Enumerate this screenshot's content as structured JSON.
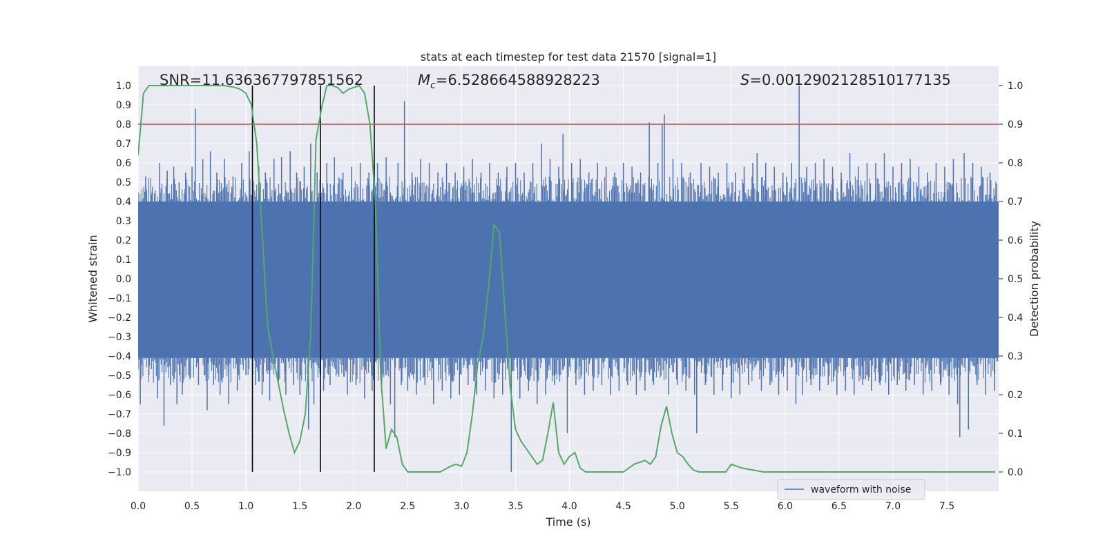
{
  "chart_data": {
    "type": "line",
    "title": "stats at each timestep for test data 21570 [signal=1]",
    "xlabel": "Time (s)",
    "ylabel": "Whitened strain",
    "y2label": "Detection probability",
    "xlim": [
      0,
      7.98
    ],
    "ylim": [
      -1.1,
      1.1
    ],
    "y2lim": [
      -0.05,
      1.05
    ],
    "x_ticks": [
      0.0,
      0.5,
      1.0,
      1.5,
      2.0,
      2.5,
      3.0,
      3.5,
      4.0,
      4.5,
      5.0,
      5.5,
      6.0,
      6.5,
      7.0,
      7.5
    ],
    "x_tick_labels": [
      "0.0",
      "0.5",
      "1.0",
      "1.5",
      "2.0",
      "2.5",
      "3.0",
      "3.5",
      "4.0",
      "4.5",
      "5.0",
      "5.5",
      "6.0",
      "6.5",
      "7.0",
      "7.5"
    ],
    "y_ticks": [
      1.0,
      0.9,
      0.8,
      0.7,
      0.6,
      0.5,
      0.4,
      0.3,
      0.2,
      0.1,
      0.0,
      -0.1,
      -0.2,
      -0.3,
      -0.4,
      -0.5,
      -0.6,
      -0.7,
      -0.8,
      -0.9,
      -1.0
    ],
    "y_tick_labels": [
      "1.0",
      "0.9",
      "0.8",
      "0.7",
      "0.6",
      "0.5",
      "0.4",
      "0.3",
      "0.2",
      "0.1",
      "0.0",
      "−0.1",
      "−0.2",
      "−0.3",
      "−0.4",
      "−0.5",
      "−0.6",
      "−0.7",
      "−0.8",
      "−0.9",
      "−1.0"
    ],
    "y2_ticks": [
      1.0,
      0.9,
      0.8,
      0.7,
      0.6,
      0.5,
      0.4,
      0.3,
      0.2,
      0.1,
      0.0
    ],
    "y2_tick_labels": [
      "1.0",
      "0.9",
      "0.8",
      "0.7",
      "0.6",
      "0.5",
      "0.4",
      "0.3",
      "0.2",
      "0.1",
      "0.0"
    ],
    "grid": true,
    "legend": {
      "entries": [
        "waveform with noise"
      ],
      "placement": "lower-right"
    },
    "annotations": {
      "snr": "SNR=11.636367797851562",
      "mc_symbol": "M",
      "mc_sub": "c",
      "mc_value": "=6.528664588928223",
      "s_symbol": "S",
      "s_value": "=0.0012902128510177135"
    },
    "threshold": {
      "y2": 0.9,
      "color": "#c44e52"
    },
    "vertical_lines": [
      1.06,
      1.69,
      2.19
    ],
    "waveform": {
      "name": "waveform with noise",
      "color": "#4c72b0",
      "band_pos": 0.4,
      "band_neg": -0.41,
      "spikes": [
        [
          0.02,
          -0.65
        ],
        [
          0.07,
          0.53
        ],
        [
          0.1,
          -0.5
        ],
        [
          0.13,
          0.45
        ],
        [
          0.18,
          -0.62
        ],
        [
          0.2,
          0.6
        ],
        [
          0.24,
          -0.76
        ],
        [
          0.27,
          0.56
        ],
        [
          0.3,
          -0.55
        ],
        [
          0.33,
          0.58
        ],
        [
          0.36,
          -0.65
        ],
        [
          0.38,
          0.5
        ],
        [
          0.41,
          -0.6
        ],
        [
          0.44,
          0.55
        ],
        [
          0.47,
          -0.5
        ],
        [
          0.5,
          0.58
        ],
        [
          0.53,
          0.88
        ],
        [
          0.56,
          -0.55
        ],
        [
          0.6,
          0.62
        ],
        [
          0.64,
          -0.68
        ],
        [
          0.67,
          0.66
        ],
        [
          0.7,
          -0.55
        ],
        [
          0.73,
          0.55
        ],
        [
          0.76,
          -0.6
        ],
        [
          0.8,
          0.62
        ],
        [
          0.84,
          -0.65
        ],
        [
          0.88,
          0.53
        ],
        [
          0.92,
          -0.58
        ],
        [
          0.96,
          0.6
        ],
        [
          1.0,
          -0.5
        ],
        [
          1.03,
          0.66
        ],
        [
          1.09,
          -0.55
        ],
        [
          1.12,
          0.58
        ],
        [
          1.15,
          -0.6
        ],
        [
          1.18,
          0.55
        ],
        [
          1.22,
          -0.63
        ],
        [
          1.26,
          0.62
        ],
        [
          1.3,
          -0.55
        ],
        [
          1.33,
          0.63
        ],
        [
          1.37,
          -0.6
        ],
        [
          1.41,
          0.66
        ],
        [
          1.44,
          -0.55
        ],
        [
          1.47,
          0.55
        ],
        [
          1.5,
          -0.6
        ],
        [
          1.54,
          0.58
        ],
        [
          1.58,
          -0.78
        ],
        [
          1.6,
          0.7
        ],
        [
          1.63,
          -0.65
        ],
        [
          1.66,
          0.55
        ],
        [
          1.72,
          -0.58
        ],
        [
          1.75,
          0.6
        ],
        [
          1.78,
          -0.55
        ],
        [
          1.82,
          0.63
        ],
        [
          1.86,
          -0.5
        ],
        [
          1.9,
          0.55
        ],
        [
          1.94,
          -0.6
        ],
        [
          1.98,
          0.58
        ],
        [
          2.02,
          -0.55
        ],
        [
          2.06,
          0.6
        ],
        [
          2.1,
          -0.62
        ],
        [
          2.14,
          0.55
        ],
        [
          2.17,
          -0.58
        ],
        [
          2.22,
          0.6
        ],
        [
          2.26,
          -0.55
        ],
        [
          2.3,
          0.63
        ],
        [
          2.34,
          -0.65
        ],
        [
          2.38,
          -0.82
        ],
        [
          2.41,
          0.6
        ],
        [
          2.44,
          -0.55
        ],
        [
          2.47,
          0.92
        ],
        [
          2.5,
          -0.58
        ],
        [
          2.54,
          0.55
        ],
        [
          2.58,
          -0.6
        ],
        [
          2.62,
          0.62
        ],
        [
          2.66,
          -0.55
        ],
        [
          2.7,
          0.6
        ],
        [
          2.74,
          -0.65
        ],
        [
          2.78,
          0.55
        ],
        [
          2.82,
          -0.58
        ],
        [
          2.86,
          0.6
        ],
        [
          2.9,
          -0.62
        ],
        [
          2.94,
          0.55
        ],
        [
          2.98,
          -0.6
        ],
        [
          3.02,
          0.58
        ],
        [
          3.06,
          -0.55
        ],
        [
          3.1,
          0.62
        ],
        [
          3.14,
          -0.6
        ],
        [
          3.18,
          0.55
        ],
        [
          3.22,
          -0.58
        ],
        [
          3.26,
          0.6
        ],
        [
          3.3,
          -0.62
        ],
        [
          3.34,
          0.55
        ],
        [
          3.38,
          -0.6
        ],
        [
          3.42,
          0.58
        ],
        [
          3.46,
          -1.0
        ],
        [
          3.5,
          0.6
        ],
        [
          3.54,
          -0.62
        ],
        [
          3.58,
          0.55
        ],
        [
          3.62,
          -0.58
        ],
        [
          3.66,
          0.6
        ],
        [
          3.7,
          -0.65
        ],
        [
          3.74,
          0.7
        ],
        [
          3.78,
          -0.6
        ],
        [
          3.82,
          0.62
        ],
        [
          3.86,
          -0.55
        ],
        [
          3.9,
          0.58
        ],
        [
          3.94,
          0.75
        ],
        [
          3.98,
          -0.8
        ],
        [
          4.02,
          0.6
        ],
        [
          4.06,
          -0.55
        ],
        [
          4.1,
          0.62
        ],
        [
          4.14,
          -0.6
        ],
        [
          4.18,
          0.55
        ],
        [
          4.22,
          -0.58
        ],
        [
          4.26,
          0.6
        ],
        [
          4.3,
          -0.55
        ],
        [
          4.34,
          0.58
        ],
        [
          4.38,
          -0.6
        ],
        [
          4.42,
          0.55
        ],
        [
          4.46,
          -0.58
        ],
        [
          4.5,
          0.6
        ],
        [
          4.54,
          -0.55
        ],
        [
          4.58,
          0.58
        ],
        [
          4.62,
          -0.6
        ],
        [
          4.66,
          0.55
        ],
        [
          4.7,
          -0.58
        ],
        [
          4.74,
          0.81
        ],
        [
          4.78,
          -0.55
        ],
        [
          4.82,
          0.6
        ],
        [
          4.86,
          0.8
        ],
        [
          4.88,
          0.85
        ],
        [
          4.92,
          -0.6
        ],
        [
          4.96,
          0.62
        ],
        [
          5.0,
          -0.55
        ],
        [
          5.04,
          0.6
        ],
        [
          5.08,
          -0.58
        ],
        [
          5.12,
          0.55
        ],
        [
          5.16,
          -0.6
        ],
        [
          5.18,
          -0.8
        ],
        [
          5.22,
          0.6
        ],
        [
          5.26,
          -0.55
        ],
        [
          5.3,
          0.58
        ],
        [
          5.34,
          -0.6
        ],
        [
          5.38,
          0.55
        ],
        [
          5.42,
          -0.58
        ],
        [
          5.46,
          0.6
        ],
        [
          5.5,
          -0.62
        ],
        [
          5.54,
          0.55
        ],
        [
          5.58,
          -0.6
        ],
        [
          5.62,
          0.58
        ],
        [
          5.66,
          -0.55
        ],
        [
          5.7,
          0.6
        ],
        [
          5.74,
          0.65
        ],
        [
          5.78,
          -0.58
        ],
        [
          5.82,
          0.6
        ],
        [
          5.86,
          -0.55
        ],
        [
          5.9,
          0.58
        ],
        [
          5.94,
          -0.6
        ],
        [
          5.98,
          0.55
        ],
        [
          6.02,
          -0.58
        ],
        [
          6.06,
          0.6
        ],
        [
          6.1,
          -0.65
        ],
        [
          6.13,
          1.0
        ],
        [
          6.16,
          -0.6
        ],
        [
          6.2,
          0.58
        ],
        [
          6.24,
          -0.55
        ],
        [
          6.28,
          0.6
        ],
        [
          6.32,
          -0.58
        ],
        [
          6.36,
          0.62
        ],
        [
          6.4,
          -0.55
        ],
        [
          6.44,
          0.58
        ],
        [
          6.48,
          -0.6
        ],
        [
          6.52,
          0.55
        ],
        [
          6.56,
          -0.58
        ],
        [
          6.6,
          0.65
        ],
        [
          6.64,
          -0.6
        ],
        [
          6.68,
          0.58
        ],
        [
          6.72,
          -0.55
        ],
        [
          6.76,
          0.6
        ],
        [
          6.8,
          -0.58
        ],
        [
          6.84,
          0.6
        ],
        [
          6.88,
          -0.55
        ],
        [
          6.92,
          0.65
        ],
        [
          6.96,
          -0.6
        ],
        [
          7.0,
          0.58
        ],
        [
          7.04,
          -0.55
        ],
        [
          7.08,
          0.6
        ],
        [
          7.12,
          -0.58
        ],
        [
          7.16,
          0.62
        ],
        [
          7.2,
          -0.55
        ],
        [
          7.24,
          0.58
        ],
        [
          7.28,
          -0.6
        ],
        [
          7.32,
          0.55
        ],
        [
          7.36,
          -0.58
        ],
        [
          7.4,
          0.6
        ],
        [
          7.44,
          -0.55
        ],
        [
          7.48,
          0.58
        ],
        [
          7.52,
          -0.6
        ],
        [
          7.56,
          0.62
        ],
        [
          7.6,
          -0.65
        ],
        [
          7.62,
          -0.82
        ],
        [
          7.66,
          0.65
        ],
        [
          7.7,
          -0.78
        ],
        [
          7.74,
          0.6
        ],
        [
          7.78,
          -0.55
        ],
        [
          7.82,
          0.58
        ],
        [
          7.86,
          -0.6
        ],
        [
          7.9,
          0.55
        ],
        [
          7.94,
          -0.58
        ]
      ]
    },
    "probability": {
      "color": "#55a868",
      "x": [
        0.0,
        0.05,
        0.1,
        0.15,
        0.2,
        0.3,
        0.4,
        0.5,
        0.6,
        0.7,
        0.8,
        0.9,
        0.95,
        1.0,
        1.05,
        1.1,
        1.15,
        1.2,
        1.25,
        1.3,
        1.35,
        1.4,
        1.45,
        1.5,
        1.55,
        1.6,
        1.65,
        1.7,
        1.75,
        1.8,
        1.85,
        1.9,
        1.95,
        2.0,
        2.05,
        2.1,
        2.15,
        2.2,
        2.25,
        2.3,
        2.35,
        2.4,
        2.45,
        2.5,
        2.6,
        2.7,
        2.8,
        2.9,
        2.95,
        3.0,
        3.05,
        3.1,
        3.15,
        3.2,
        3.25,
        3.3,
        3.35,
        3.4,
        3.45,
        3.5,
        3.55,
        3.6,
        3.65,
        3.7,
        3.75,
        3.8,
        3.85,
        3.9,
        3.95,
        4.0,
        4.05,
        4.1,
        4.15,
        4.2,
        4.25,
        4.3,
        4.4,
        4.5,
        4.6,
        4.7,
        4.75,
        4.8,
        4.85,
        4.9,
        4.95,
        5.0,
        5.05,
        5.1,
        5.15,
        5.2,
        5.25,
        5.3,
        5.35,
        5.4,
        5.45,
        5.5,
        5.6,
        5.8,
        6.0,
        6.1,
        6.15,
        6.2,
        6.3,
        6.4,
        6.5,
        6.6,
        6.8,
        7.0,
        7.2,
        7.4,
        7.6,
        7.8,
        7.95
      ],
      "y": [
        0.82,
        0.98,
        1.0,
        1.0,
        1.0,
        1.0,
        1.0,
        1.0,
        1.0,
        1.0,
        1.0,
        0.995,
        0.99,
        0.98,
        0.95,
        0.85,
        0.62,
        0.38,
        0.3,
        0.23,
        0.16,
        0.1,
        0.05,
        0.08,
        0.15,
        0.35,
        0.86,
        0.94,
        1.0,
        1.0,
        0.995,
        0.98,
        0.99,
        0.995,
        1.0,
        0.98,
        0.9,
        0.7,
        0.25,
        0.06,
        0.11,
        0.09,
        0.02,
        0.0,
        0.0,
        0.0,
        0.0,
        0.015,
        0.02,
        0.015,
        0.05,
        0.15,
        0.28,
        0.35,
        0.48,
        0.64,
        0.62,
        0.42,
        0.22,
        0.11,
        0.08,
        0.06,
        0.04,
        0.02,
        0.03,
        0.1,
        0.18,
        0.05,
        0.02,
        0.04,
        0.05,
        0.01,
        0.0,
        0.0,
        0.0,
        0.0,
        0.0,
        0.0,
        0.02,
        0.03,
        0.02,
        0.04,
        0.12,
        0.17,
        0.1,
        0.05,
        0.04,
        0.02,
        0.005,
        0.0,
        0.0,
        0.0,
        0.0,
        0.0,
        0.0,
        0.02,
        0.01,
        0.0,
        0.0,
        0.0,
        0.0,
        0.0,
        0.0,
        0.0,
        0.0,
        0.0,
        0.0,
        0.0,
        0.0,
        0.0,
        0.0,
        0.0,
        0.0
      ]
    }
  }
}
